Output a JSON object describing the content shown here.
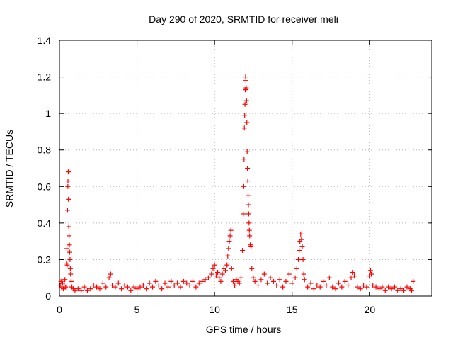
{
  "chart_data": {
    "type": "scatter",
    "title": "Day 290 of 2020, SRMTID for receiver meli",
    "xlabel": "GPS time / hours",
    "ylabel": "SRMTID / TECUs",
    "xlim": [
      0,
      24
    ],
    "ylim": [
      0,
      1.4
    ],
    "x_ticks": [
      0,
      5,
      10,
      15,
      20
    ],
    "x_tick_labels": [
      "0",
      "5",
      "10",
      "15",
      "20"
    ],
    "y_ticks": [
      0,
      0.2,
      0.4,
      0.6,
      0.8,
      1.0,
      1.2,
      1.4
    ],
    "y_tick_labels": [
      "0",
      "0.2",
      "0.4",
      "0.6",
      "0.8",
      "1",
      "1.2",
      "1.4"
    ],
    "grid": true,
    "marker": "+",
    "marker_color": "#ff0000",
    "series": [
      {
        "name": "SRMTID",
        "points": [
          [
            0.05,
            0.06
          ],
          [
            0.1,
            0.08
          ],
          [
            0.15,
            0.05
          ],
          [
            0.2,
            0.07
          ],
          [
            0.25,
            0.04
          ],
          [
            0.3,
            0.06
          ],
          [
            0.35,
            0.09
          ],
          [
            0.4,
            0.05
          ],
          [
            0.45,
            0.18
          ],
          [
            0.48,
            0.26
          ],
          [
            0.5,
            0.17
          ],
          [
            0.52,
            0.47
          ],
          [
            0.54,
            0.6
          ],
          [
            0.55,
            0.63
          ],
          [
            0.57,
            0.68
          ],
          [
            0.58,
            0.53
          ],
          [
            0.6,
            0.38
          ],
          [
            0.62,
            0.33
          ],
          [
            0.64,
            0.28
          ],
          [
            0.66,
            0.24
          ],
          [
            0.68,
            0.2
          ],
          [
            0.7,
            0.15
          ],
          [
            0.72,
            0.12
          ],
          [
            0.75,
            0.08
          ],
          [
            0.8,
            0.05
          ],
          [
            0.9,
            0.04
          ],
          [
            1.0,
            0.03
          ],
          [
            1.2,
            0.04
          ],
          [
            1.4,
            0.03
          ],
          [
            1.6,
            0.05
          ],
          [
            1.8,
            0.03
          ],
          [
            2.0,
            0.04
          ],
          [
            2.2,
            0.06
          ],
          [
            2.4,
            0.05
          ],
          [
            2.6,
            0.04
          ],
          [
            2.8,
            0.07
          ],
          [
            3.0,
            0.05
          ],
          [
            3.2,
            0.1
          ],
          [
            3.3,
            0.12
          ],
          [
            3.4,
            0.06
          ],
          [
            3.6,
            0.05
          ],
          [
            3.8,
            0.07
          ],
          [
            4.0,
            0.04
          ],
          [
            4.2,
            0.06
          ],
          [
            4.4,
            0.05
          ],
          [
            4.6,
            0.03
          ],
          [
            4.8,
            0.05
          ],
          [
            5.0,
            0.04
          ],
          [
            5.2,
            0.05
          ],
          [
            5.4,
            0.06
          ],
          [
            5.6,
            0.04
          ],
          [
            5.8,
            0.07
          ],
          [
            6.0,
            0.05
          ],
          [
            6.2,
            0.08
          ],
          [
            6.4,
            0.06
          ],
          [
            6.6,
            0.04
          ],
          [
            6.8,
            0.07
          ],
          [
            7.0,
            0.05
          ],
          [
            7.2,
            0.08
          ],
          [
            7.4,
            0.06
          ],
          [
            7.6,
            0.07
          ],
          [
            7.8,
            0.05
          ],
          [
            8.0,
            0.08
          ],
          [
            8.2,
            0.07
          ],
          [
            8.4,
            0.06
          ],
          [
            8.6,
            0.08
          ],
          [
            8.8,
            0.05
          ],
          [
            9.0,
            0.07
          ],
          [
            9.2,
            0.08
          ],
          [
            9.4,
            0.09
          ],
          [
            9.6,
            0.1
          ],
          [
            9.8,
            0.12
          ],
          [
            9.9,
            0.15
          ],
          [
            10.0,
            0.17
          ],
          [
            10.1,
            0.11
          ],
          [
            10.2,
            0.13
          ],
          [
            10.3,
            0.1
          ],
          [
            10.4,
            0.08
          ],
          [
            10.5,
            0.12
          ],
          [
            10.6,
            0.15
          ],
          [
            10.7,
            0.14
          ],
          [
            10.8,
            0.17
          ],
          [
            10.85,
            0.22
          ],
          [
            10.9,
            0.26
          ],
          [
            10.95,
            0.3
          ],
          [
            11.0,
            0.33
          ],
          [
            11.05,
            0.36
          ],
          [
            11.1,
            0.15
          ],
          [
            11.2,
            0.08
          ],
          [
            11.3,
            0.06
          ],
          [
            11.4,
            0.09
          ],
          [
            11.5,
            0.08
          ],
          [
            11.6,
            0.07
          ],
          [
            11.7,
            0.1
          ],
          [
            11.8,
            0.25
          ],
          [
            11.85,
            0.45
          ],
          [
            11.88,
            0.6
          ],
          [
            11.9,
            0.75
          ],
          [
            11.92,
            0.92
          ],
          [
            11.94,
            0.99
          ],
          [
            11.96,
            1.05
          ],
          [
            11.98,
            1.13
          ],
          [
            12.0,
            1.2
          ],
          [
            12.02,
            1.18
          ],
          [
            12.04,
            1.14
          ],
          [
            12.06,
            1.07
          ],
          [
            12.08,
            0.95
          ],
          [
            12.1,
            0.79
          ],
          [
            12.12,
            0.7
          ],
          [
            12.14,
            0.63
          ],
          [
            12.16,
            0.55
          ],
          [
            12.18,
            0.5
          ],
          [
            12.2,
            0.45
          ],
          [
            12.22,
            0.4
          ],
          [
            12.24,
            0.36
          ],
          [
            12.26,
            0.33
          ],
          [
            12.3,
            0.28
          ],
          [
            12.35,
            0.27
          ],
          [
            12.4,
            0.15
          ],
          [
            12.5,
            0.1
          ],
          [
            12.6,
            0.08
          ],
          [
            12.8,
            0.06
          ],
          [
            13.0,
            0.09
          ],
          [
            13.2,
            0.12
          ],
          [
            13.4,
            0.07
          ],
          [
            13.6,
            0.1
          ],
          [
            13.8,
            0.08
          ],
          [
            14.0,
            0.06
          ],
          [
            14.2,
            0.09
          ],
          [
            14.4,
            0.05
          ],
          [
            14.6,
            0.08
          ],
          [
            14.8,
            0.12
          ],
          [
            15.0,
            0.07
          ],
          [
            15.2,
            0.1
          ],
          [
            15.3,
            0.15
          ],
          [
            15.4,
            0.2
          ],
          [
            15.45,
            0.25
          ],
          [
            15.5,
            0.3
          ],
          [
            15.55,
            0.34
          ],
          [
            15.6,
            0.31
          ],
          [
            15.65,
            0.27
          ],
          [
            15.7,
            0.2
          ],
          [
            15.75,
            0.12
          ],
          [
            15.8,
            0.09
          ],
          [
            16.0,
            0.05
          ],
          [
            16.2,
            0.07
          ],
          [
            16.4,
            0.04
          ],
          [
            16.6,
            0.06
          ],
          [
            16.8,
            0.05
          ],
          [
            17.0,
            0.08
          ],
          [
            17.2,
            0.06
          ],
          [
            17.4,
            0.1
          ],
          [
            17.6,
            0.05
          ],
          [
            17.8,
            0.04
          ],
          [
            18.0,
            0.07
          ],
          [
            18.2,
            0.05
          ],
          [
            18.4,
            0.08
          ],
          [
            18.6,
            0.06
          ],
          [
            18.8,
            0.1
          ],
          [
            18.9,
            0.13
          ],
          [
            19.0,
            0.11
          ],
          [
            19.2,
            0.05
          ],
          [
            19.4,
            0.04
          ],
          [
            19.6,
            0.06
          ],
          [
            19.8,
            0.05
          ],
          [
            20.0,
            0.11
          ],
          [
            20.05,
            0.14
          ],
          [
            20.1,
            0.12
          ],
          [
            20.2,
            0.06
          ],
          [
            20.4,
            0.05
          ],
          [
            20.6,
            0.04
          ],
          [
            20.8,
            0.05
          ],
          [
            21.0,
            0.03
          ],
          [
            21.2,
            0.05
          ],
          [
            21.4,
            0.04
          ],
          [
            21.6,
            0.05
          ],
          [
            21.8,
            0.03
          ],
          [
            22.0,
            0.04
          ],
          [
            22.2,
            0.03
          ],
          [
            22.4,
            0.05
          ],
          [
            22.6,
            0.04
          ],
          [
            22.7,
            0.03
          ],
          [
            22.8,
            0.08
          ]
        ]
      }
    ]
  }
}
